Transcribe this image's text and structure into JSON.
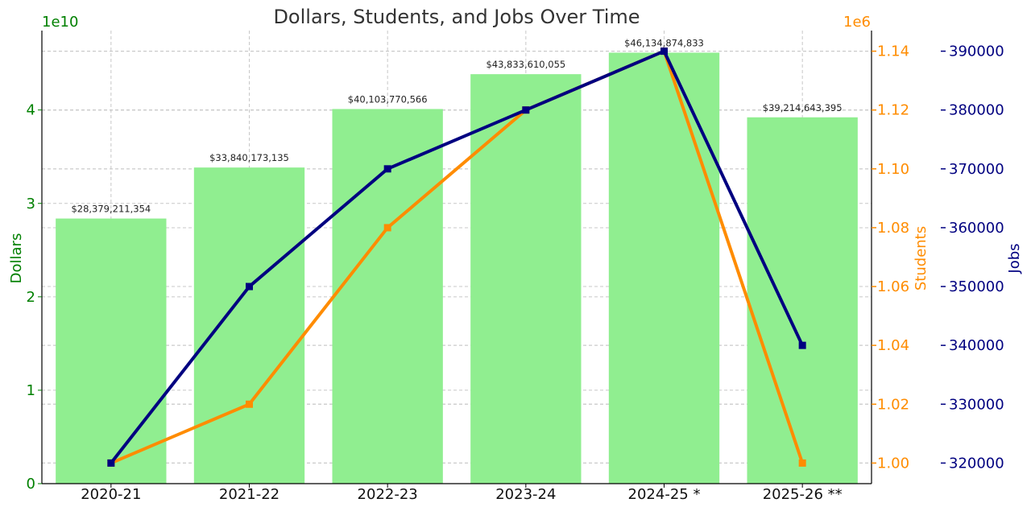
{
  "chart_data": {
    "type": "bar",
    "title": "Dollars, Students, and Jobs Over Time",
    "categories": [
      "2020-21",
      "2021-22",
      "2022-23",
      "2023-24",
      "2024-25 *",
      "2025-26 **"
    ],
    "grid": true,
    "series": [
      {
        "name": "Dollars",
        "type": "bar",
        "axis": "left",
        "color": "#90EE90",
        "values": [
          28379211354,
          33840173135,
          40103770566,
          43833610055,
          46134874833,
          39214643395
        ],
        "data_labels": [
          "$28,379,211,354",
          "$33,840,173,135",
          "$40,103,770,566",
          "$43,833,610,055",
          "$46,134,874,833",
          "$39,214,643,395"
        ]
      },
      {
        "name": "Students",
        "type": "line",
        "axis": "right1",
        "color": "#FF8C00",
        "marker": "square",
        "values": [
          1000000,
          1020000,
          1080000,
          1120000,
          1140000,
          1000000
        ]
      },
      {
        "name": "Jobs",
        "type": "line",
        "axis": "right2",
        "color": "#000080",
        "marker": "square",
        "values": [
          320000,
          350000,
          370000,
          380000,
          390000,
          340000
        ]
      }
    ],
    "axes": {
      "left": {
        "label": "Dollars",
        "color": "#008000",
        "multiplier": "1e10",
        "ylim": [
          0,
          4.85
        ],
        "ticks": [
          0,
          1,
          2,
          3,
          4
        ],
        "tick_labels": [
          "0",
          "1",
          "2",
          "3",
          "4"
        ]
      },
      "right1": {
        "label": "Students",
        "color": "#FF8C00",
        "multiplier": "1e6",
        "ylim": [
          0.993,
          1.147
        ],
        "ticks": [
          1.0,
          1.02,
          1.04,
          1.06,
          1.08,
          1.1,
          1.12,
          1.14
        ],
        "tick_labels": [
          "1.00",
          "1.02",
          "1.04",
          "1.06",
          "1.08",
          "1.10",
          "1.12",
          "1.14"
        ]
      },
      "right2": {
        "label": "Jobs",
        "color": "#000080",
        "ylim": [
          316500,
          393500
        ],
        "ticks": [
          320000,
          330000,
          340000,
          350000,
          360000,
          370000,
          380000,
          390000
        ],
        "tick_labels": [
          "320000",
          "330000",
          "340000",
          "350000",
          "360000",
          "370000",
          "380000",
          "390000"
        ]
      }
    }
  }
}
